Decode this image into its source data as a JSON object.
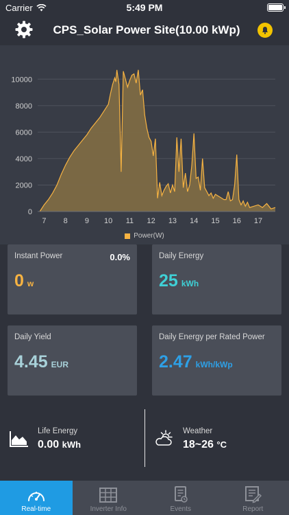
{
  "status_bar": {
    "carrier": "Carrier",
    "time": "5:49 PM"
  },
  "header": {
    "title": "CPS_Solar Power Site(10.00 kWp)"
  },
  "chart_data": {
    "type": "area",
    "x": [
      6.8,
      7.0,
      7.2,
      7.4,
      7.6,
      7.8,
      8.0,
      8.2,
      8.4,
      8.6,
      8.8,
      9.0,
      9.2,
      9.4,
      9.6,
      9.8,
      10.0,
      10.1,
      10.2,
      10.3,
      10.35,
      10.4,
      10.5,
      10.6,
      10.7,
      10.8,
      10.9,
      11.0,
      11.1,
      11.2,
      11.3,
      11.4,
      11.5,
      11.6,
      11.7,
      11.8,
      11.9,
      12.0,
      12.1,
      12.2,
      12.3,
      12.4,
      12.5,
      12.6,
      12.7,
      12.8,
      12.9,
      13.0,
      13.1,
      13.2,
      13.3,
      13.4,
      13.5,
      13.6,
      13.7,
      13.8,
      13.9,
      14.0,
      14.1,
      14.2,
      14.3,
      14.4,
      14.5,
      14.6,
      14.7,
      14.8,
      14.9,
      15.0,
      15.2,
      15.4,
      15.5,
      15.6,
      15.7,
      15.8,
      15.9,
      16.0,
      16.1,
      16.2,
      16.3,
      16.4,
      16.5,
      16.6,
      16.8,
      17.0,
      17.2,
      17.4,
      17.6,
      17.8
    ],
    "series": [
      {
        "name": "Power(W)",
        "color": "#f7b342",
        "values": [
          0,
          500,
          900,
          1400,
          2000,
          2800,
          3500,
          4100,
          4600,
          5000,
          5400,
          5800,
          6300,
          6700,
          7100,
          7600,
          8100,
          8900,
          9600,
          10100,
          9800,
          10700,
          9600,
          3000,
          10600,
          10000,
          9400,
          9900,
          10300,
          10400,
          9700,
          10700,
          8800,
          9200,
          7300,
          6300,
          5600,
          5300,
          4200,
          5500,
          1000,
          2200,
          1200,
          1600,
          1900,
          2100,
          1400,
          2000,
          1500,
          5600,
          3000,
          5500,
          1800,
          2900,
          1500,
          2000,
          3500,
          5900,
          2500,
          2600,
          1600,
          4000,
          1800,
          1500,
          1200,
          1400,
          1000,
          1300,
          1100,
          900,
          900,
          1500,
          800,
          900,
          2000,
          4300,
          900,
          500,
          800,
          400,
          700,
          300,
          400,
          500,
          300,
          600,
          200,
          300
        ]
      }
    ],
    "x_ticks": [
      7,
      8,
      9,
      10,
      11,
      12,
      13,
      14,
      15,
      16,
      17
    ],
    "y_ticks": [
      0,
      2000,
      4000,
      6000,
      8000,
      10000
    ],
    "xlim": [
      6.7,
      17.8
    ],
    "ylim": [
      0,
      11000
    ],
    "legend": "bottom"
  },
  "cards": {
    "instant_power": {
      "label": "Instant Power",
      "value": "0",
      "unit": "w",
      "percent": "0.0%"
    },
    "daily_energy": {
      "label": "Daily Energy",
      "value": "25",
      "unit": "kWh"
    },
    "daily_yield": {
      "label": "Daily Yield",
      "value": "4.45",
      "unit": "EUR"
    },
    "daily_energy_per_rated": {
      "label": "Daily Energy per Rated Power",
      "value": "2.47",
      "unit": "kWh/kWp"
    }
  },
  "life_energy": {
    "label": "Life Energy",
    "value": "0.00",
    "unit": "kWh"
  },
  "weather": {
    "label": "Weather",
    "value": "18~26",
    "unit": "°C"
  },
  "tabs": [
    {
      "label": "Real-time",
      "icon": "gauge-icon",
      "active": true
    },
    {
      "label": "Inverter Info",
      "icon": "inverter-icon",
      "active": false
    },
    {
      "label": "Events",
      "icon": "events-icon",
      "active": false
    },
    {
      "label": "Report",
      "icon": "report-icon",
      "active": false
    }
  ],
  "colors": {
    "accent": "#1f9be3",
    "instant_power": "#f7b342",
    "daily_energy": "#3fd0d6",
    "daily_yield": "#a8d1d9",
    "daily_energy_per_rated": "#2ea0e6",
    "bell": "#f2c300"
  }
}
